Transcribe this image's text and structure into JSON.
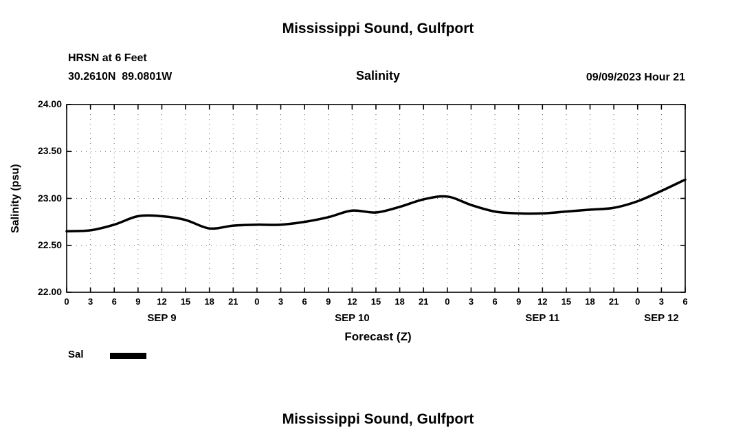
{
  "titles": {
    "top": "Mississippi Sound, Gulfport",
    "bottom": "Mississippi Sound, Gulfport"
  },
  "header": {
    "station": "HRSN at 6 Feet",
    "coords": "30.2610N  89.0801W",
    "timestamp": "09/09/2023 Hour 21"
  },
  "legend": {
    "label": "Sal",
    "color": "#000000",
    "position": "below-left"
  },
  "chart_data": {
    "type": "line",
    "title": "Salinity",
    "xlabel": "Forecast (Z)",
    "ylabel": "Salinity (psu)",
    "x_range_hours": [
      0,
      78
    ],
    "ylim": [
      22.0,
      24.0
    ],
    "grid": "dotted",
    "frame_color": "#000000",
    "x_hours": [
      0,
      3,
      6,
      9,
      12,
      15,
      18,
      21,
      24,
      27,
      30,
      33,
      36,
      39,
      42,
      45,
      48,
      51,
      54,
      57,
      60,
      63,
      66,
      69,
      72,
      75,
      78
    ],
    "xtick_labels": [
      "0",
      "3",
      "6",
      "9",
      "12",
      "15",
      "18",
      "21",
      "0",
      "3",
      "6",
      "9",
      "12",
      "15",
      "18",
      "21",
      "0",
      "3",
      "6",
      "9",
      "12",
      "15",
      "18",
      "21",
      "0",
      "3",
      "6"
    ],
    "day_labels": [
      {
        "label": "SEP 9",
        "hour": 12
      },
      {
        "label": "SEP 10",
        "hour": 36
      },
      {
        "label": "SEP 11",
        "hour": 60
      },
      {
        "label": "SEP 12",
        "hour": 75
      }
    ],
    "yticks": [
      {
        "value": 22.0,
        "label": "22.00"
      },
      {
        "value": 22.5,
        "label": "22.50"
      },
      {
        "value": 23.0,
        "label": "23.00"
      },
      {
        "value": 23.5,
        "label": "23.50"
      },
      {
        "value": 24.0,
        "label": "24.00"
      }
    ],
    "series": [
      {
        "name": "Sal",
        "color": "#000000",
        "values": [
          22.65,
          22.66,
          22.72,
          22.81,
          22.81,
          22.77,
          22.68,
          22.71,
          22.72,
          22.72,
          22.75,
          22.8,
          22.87,
          22.85,
          22.91,
          22.99,
          23.02,
          22.93,
          22.86,
          22.84,
          22.84,
          22.86,
          22.88,
          22.9,
          22.97,
          23.08,
          23.2
        ]
      }
    ]
  }
}
